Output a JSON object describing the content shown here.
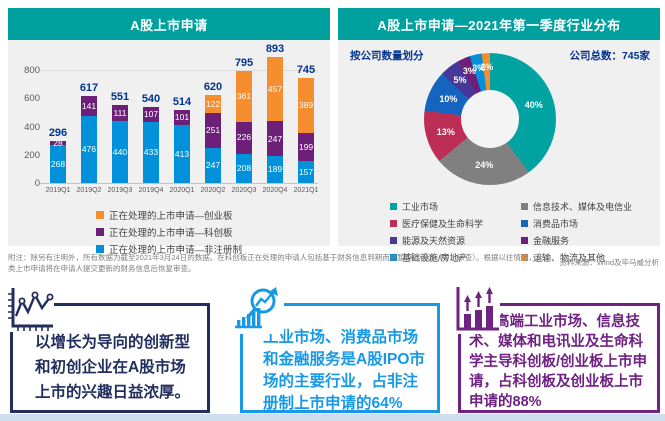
{
  "bar_panel": {
    "title": "A股上市申请"
  },
  "pie_panel": {
    "title": "A股上市申请—2021年第一季度行业分布",
    "by_label": "按公司数量划分",
    "total_label": "公司总数：745家"
  },
  "footnote": "附注：除另有注明外，所有数据为截至2021年3月24日的数据。在科创板正在处理的申请人包括基于财务信息到期而被暂停的申请（中止审查）。根据以往情况，此类上市申请将在申请人提交更新的财务信息后恢复审查。",
  "source": "资料来源：Wind及毕马威分析",
  "insights": [
    {
      "icon": "line-chart-icon",
      "color": "#222E5D",
      "text": "以增长为导向的创新型和初创企业在A股市场上市的兴趣日益浓厚。"
    },
    {
      "icon": "bar-chart-magnifier-icon",
      "color": "#1899E6",
      "text": "工业市场、消费品市场和金融服务是A股IPO市场的主要行业，占非注册制上市申请的64%"
    },
    {
      "icon": "bar-chart-arrows-icon",
      "color": "#6F2282",
      "text": "高端工业市场、信息技术、媒体和电讯业及生命科学主导科创板/创业板上市申请，占科创板及创业板上市申请的88%"
    }
  ],
  "colors": {
    "header_teal": "#00A09E",
    "panel_bg": "#F0F0F0",
    "navy_text": "#00338D",
    "axis_text": "#595959",
    "legend_text": "#404040",
    "footnote_text": "#7F7F7F",
    "bottom_strip": "#CFDDF0"
  },
  "chart_data": [
    {
      "type": "bar",
      "stacked": true,
      "title": "A股上市申请",
      "categories": [
        "2019Q1",
        "2019Q2",
        "2019Q3",
        "2019Q4",
        "2020Q1",
        "2020Q2",
        "2020Q3",
        "2020Q4",
        "2021Q1"
      ],
      "series": [
        {
          "name": "正在处理的上市申请—非注册制",
          "color": "#0091DA",
          "values": [
            268,
            476,
            440,
            433,
            413,
            247,
            208,
            189,
            157
          ]
        },
        {
          "name": "正在处理的上市申请—科创板",
          "color": "#6D2077",
          "values": [
            28,
            141,
            111,
            107,
            101,
            251,
            226,
            247,
            199
          ]
        },
        {
          "name": "正在处理的上市申请—创业板",
          "color": "#F68D2E",
          "values": [
            0,
            0,
            0,
            0,
            0,
            122,
            361,
            457,
            389
          ]
        }
      ],
      "totals": [
        296,
        617,
        551,
        540,
        514,
        620,
        795,
        893,
        745
      ],
      "xlabel": "",
      "ylabel": "",
      "ylim": [
        0,
        800
      ],
      "y_ticks": [
        0,
        200,
        400,
        600,
        800
      ],
      "grid": "top-line-only",
      "legend_position": "bottom"
    },
    {
      "type": "pie",
      "subtype": "donut",
      "title": "A股上市申请—2021年第一季度行业分布",
      "unit": "%",
      "total_companies": "745家",
      "slices": [
        {
          "label": "工业市场",
          "value": 40,
          "color": "#00A3A1"
        },
        {
          "label": "信息技术、媒体及电信业",
          "value": 24,
          "color": "#808080"
        },
        {
          "label": "医疗保健及生命科学",
          "value": 13,
          "color": "#BC2E55"
        },
        {
          "label": "消费品市场",
          "value": 10,
          "color": "#1565C0"
        },
        {
          "label": "能源及天然资源",
          "value": 5,
          "color": "#483698"
        },
        {
          "label": "金融服务",
          "value": 3,
          "color": "#6D2077"
        },
        {
          "label": "基础设施/房地产",
          "value": 3,
          "color": "#0091DA"
        },
        {
          "label": "运输、物流及其他",
          "value": 2,
          "color": "#F68D2E"
        }
      ],
      "legend_position": "bottom"
    }
  ]
}
